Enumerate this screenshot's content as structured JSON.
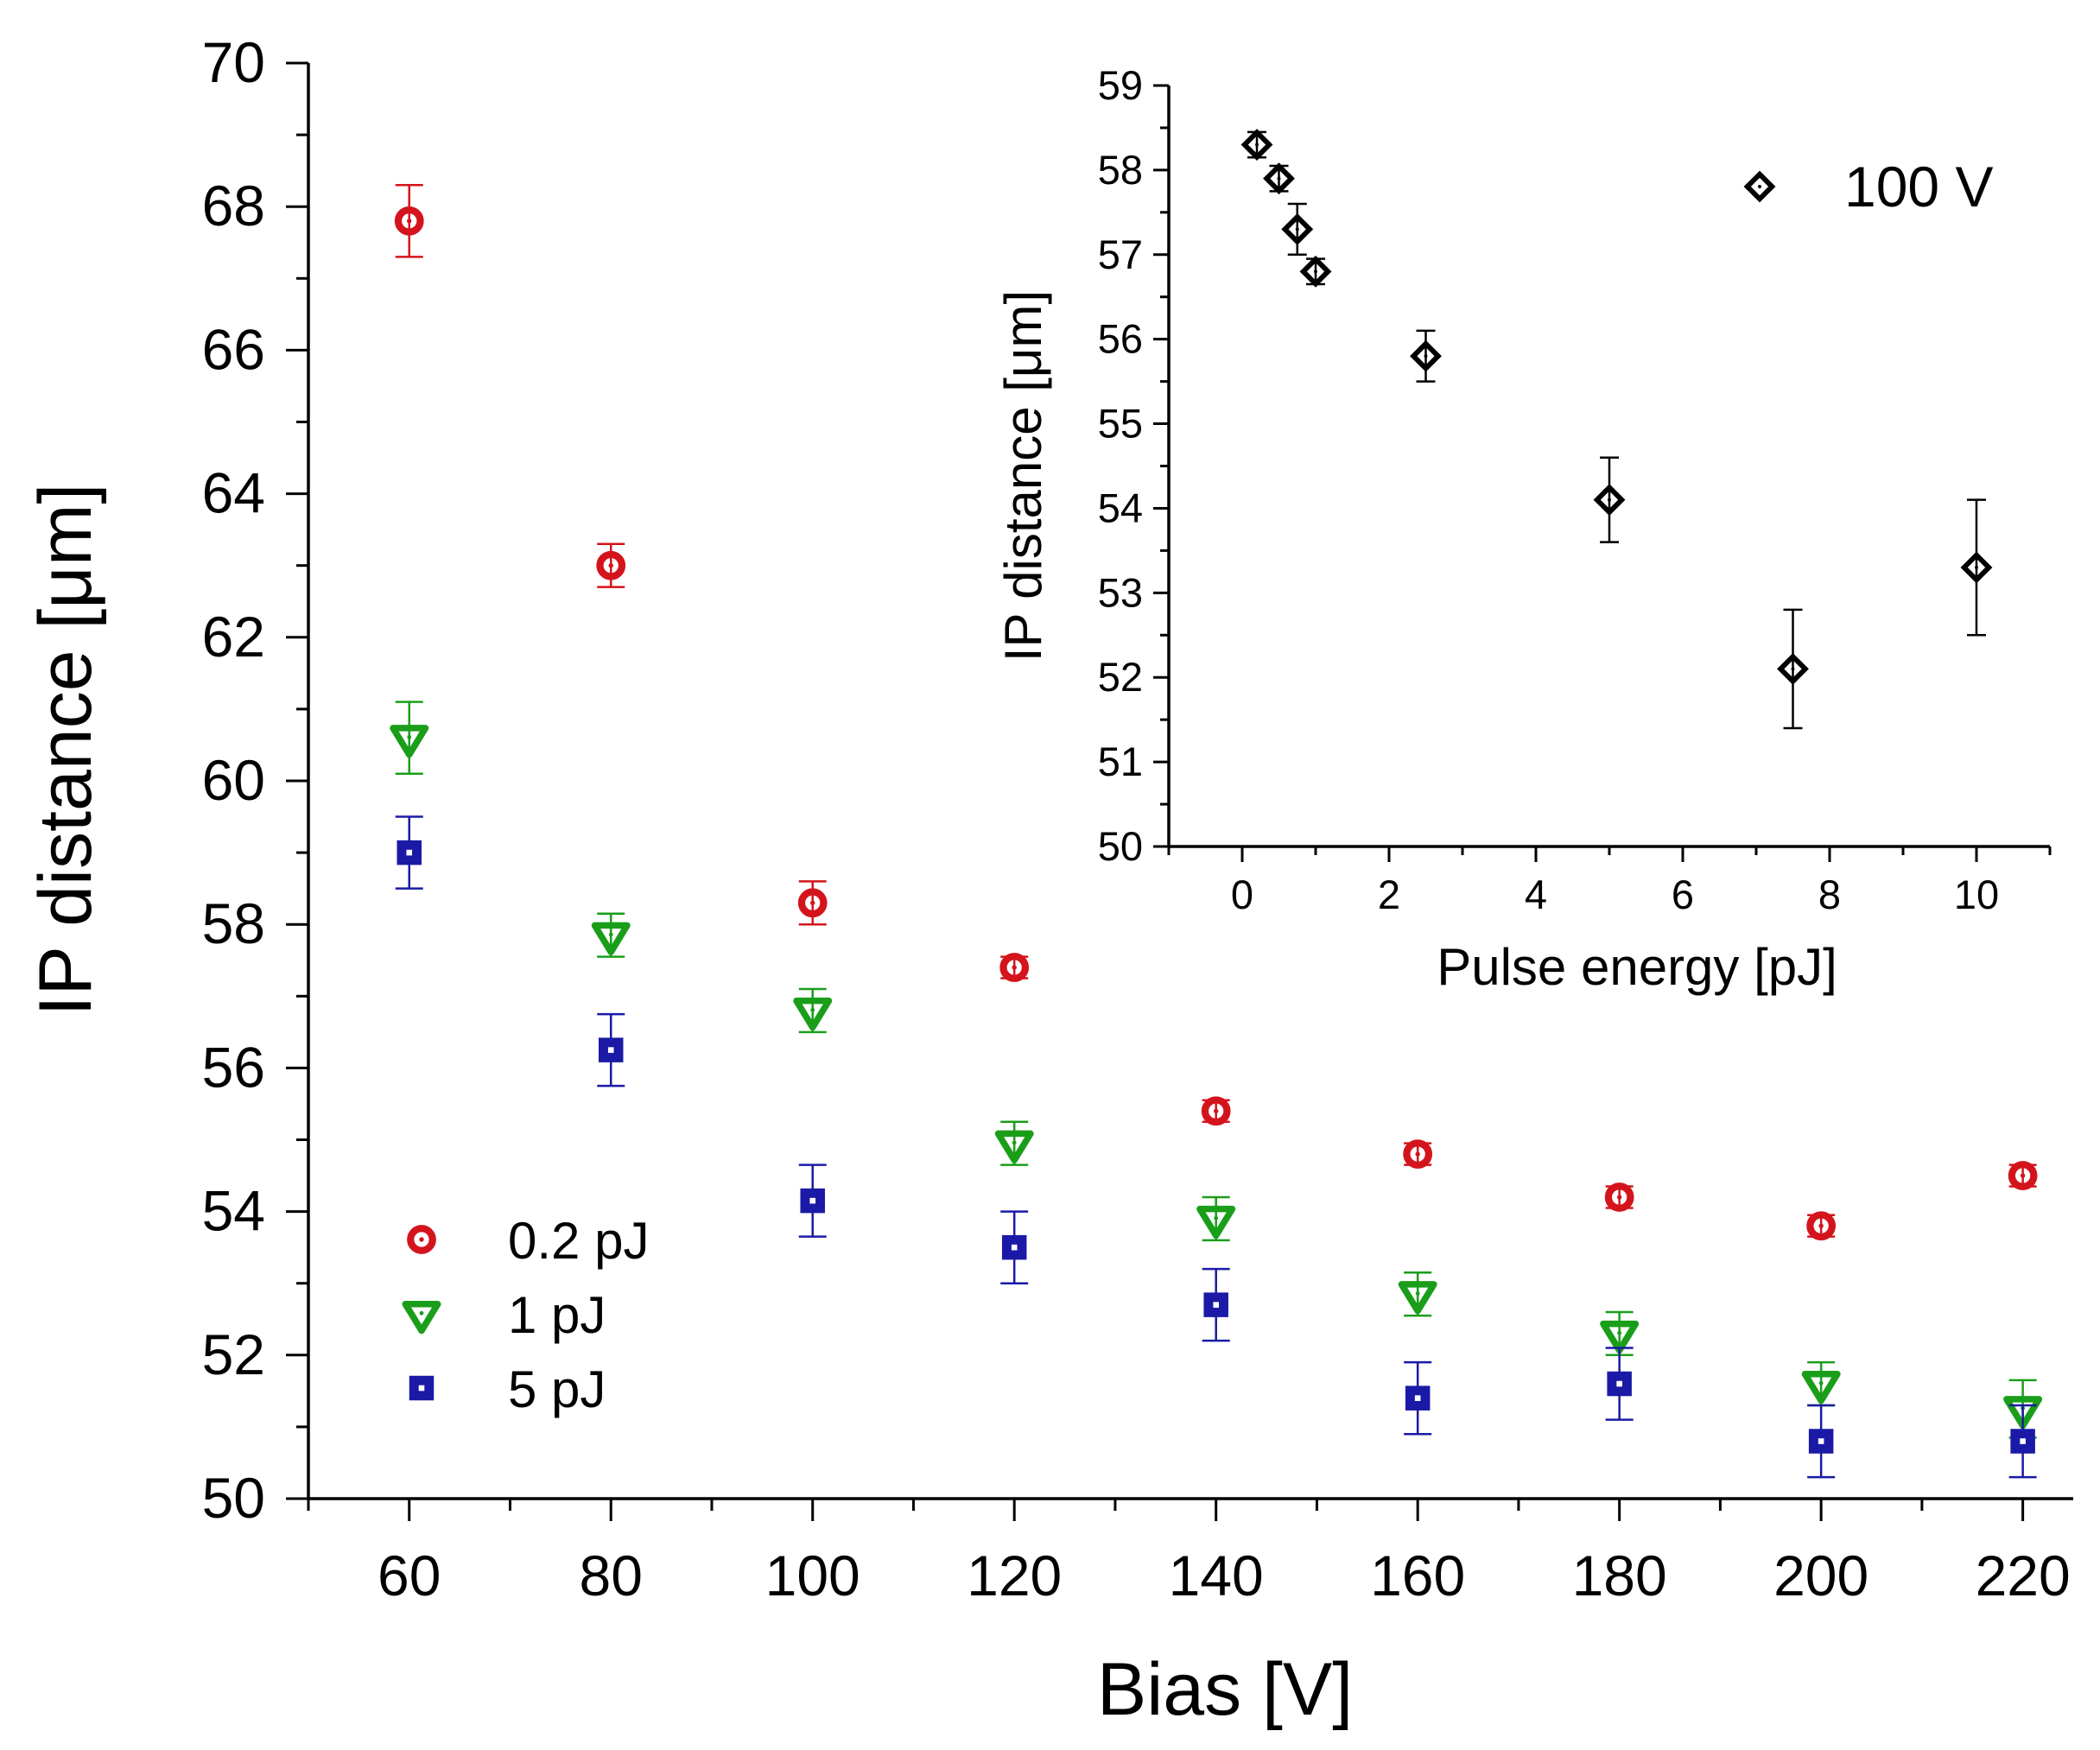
{
  "chart_data": [
    {
      "type": "scatter",
      "xlabel": "Bias [V]",
      "ylabel": "IP distance [μm]",
      "xlim": [
        50,
        225
      ],
      "ylim": [
        50,
        70
      ],
      "x_ticks": [
        60,
        80,
        100,
        120,
        140,
        160,
        180,
        200,
        220
      ],
      "y_ticks": [
        50,
        52,
        54,
        56,
        58,
        60,
        62,
        64,
        66,
        68,
        70
      ],
      "legend_position": "bottom-left",
      "series": [
        {
          "name": "0.2 pJ",
          "marker": "circle",
          "color": "#d4141c",
          "x": [
            60,
            80,
            100,
            120,
            140,
            160,
            180,
            200,
            220
          ],
          "y": [
            67.8,
            63.0,
            58.3,
            57.4,
            55.4,
            54.8,
            54.2,
            53.8,
            54.5
          ],
          "err": [
            0.5,
            0.3,
            0.3,
            0.15,
            0.15,
            0.15,
            0.15,
            0.15,
            0.15
          ]
        },
        {
          "name": "1 pJ",
          "marker": "triangle-down",
          "color": "#1a9e1a",
          "x": [
            60,
            80,
            100,
            120,
            140,
            160,
            180,
            200,
            220
          ],
          "y": [
            60.6,
            57.85,
            56.8,
            54.95,
            53.9,
            52.85,
            52.3,
            51.6,
            51.25
          ],
          "err": [
            0.5,
            0.3,
            0.3,
            0.3,
            0.3,
            0.3,
            0.3,
            0.3,
            0.4
          ]
        },
        {
          "name": "5 pJ",
          "marker": "square",
          "color": "#1a1aa6",
          "x": [
            60,
            80,
            100,
            120,
            140,
            160,
            180,
            200,
            220
          ],
          "y": [
            59.0,
            56.25,
            54.15,
            53.5,
            52.7,
            51.4,
            51.6,
            50.8,
            50.8
          ],
          "err": [
            0.5,
            0.5,
            0.5,
            0.5,
            0.5,
            0.5,
            0.5,
            0.5,
            0.5
          ]
        }
      ]
    },
    {
      "type": "scatter",
      "xlabel": "Pulse energy [pJ]",
      "ylabel": "IP distance [μm]",
      "xlim": [
        -1,
        11
      ],
      "ylim": [
        50,
        59
      ],
      "x_ticks": [
        0,
        2,
        4,
        6,
        8,
        10
      ],
      "y_ticks": [
        50,
        51,
        52,
        53,
        54,
        55,
        56,
        57,
        58,
        59
      ],
      "legend_position": "top-right",
      "series": [
        {
          "name": "100 V",
          "marker": "diamond",
          "color": "#000000",
          "x": [
            0.2,
            0.5,
            0.75,
            1.0,
            2.5,
            5.0,
            7.5,
            10.0
          ],
          "y": [
            58.3,
            57.9,
            57.3,
            56.8,
            55.8,
            54.1,
            52.1,
            53.3
          ],
          "err": [
            0.15,
            0.15,
            0.3,
            0.15,
            0.3,
            0.5,
            0.7,
            0.8
          ]
        }
      ]
    }
  ]
}
